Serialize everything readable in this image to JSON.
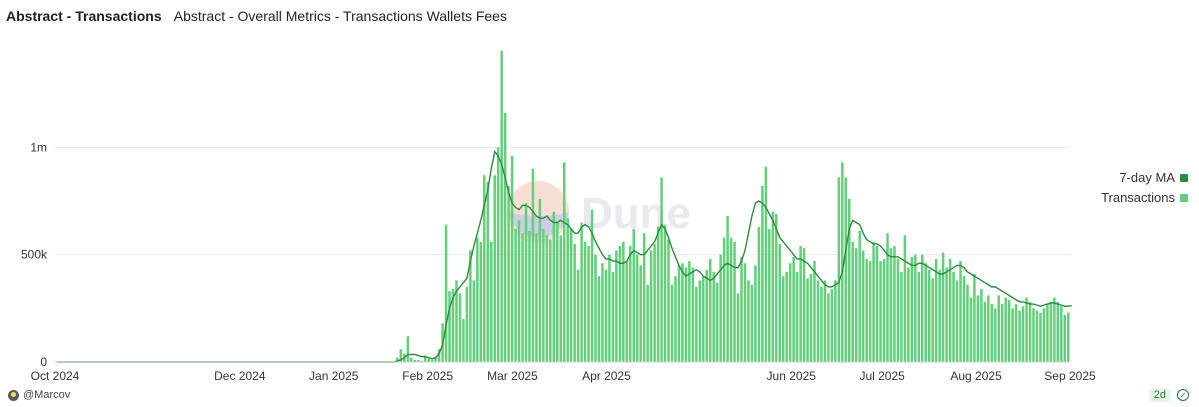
{
  "header": {
    "title": "Abstract - Transactions",
    "subtitle": "Abstract - Overall Metrics - Transactions Wallets Fees"
  },
  "watermark": "Dune",
  "footer": {
    "author": "@Marcov",
    "refresh_badge": "2d"
  },
  "colors": {
    "bars": "#62d07b",
    "ma_line": "#2e8b3f",
    "grid": "#e9e9e9"
  },
  "chart_data": {
    "type": "bar",
    "x_axis": {
      "ticks": [
        "Oct 2024",
        "Dec 2024",
        "Jan 2025",
        "Feb 2025",
        "Mar 2025",
        "Apr 2025",
        "Jun 2025",
        "Jul 2025",
        "Aug 2025",
        "Sep 2025"
      ]
    },
    "y_axis": {
      "ticks": [
        "0",
        "500k",
        "1m"
      ],
      "ylim": [
        0,
        1500000
      ]
    },
    "grid": true,
    "legend_position": "right",
    "series": [
      {
        "name": "7-day MA",
        "type": "line",
        "color": "#2e8b3f",
        "values": [
          0,
          0,
          0,
          0,
          0,
          0,
          0,
          0,
          0,
          0,
          0,
          0,
          0,
          0,
          0,
          0,
          0,
          0,
          0,
          0,
          0,
          0,
          0,
          0,
          0,
          0,
          0,
          0,
          0,
          0,
          0,
          0,
          0,
          0,
          0,
          0,
          0,
          0,
          0,
          0,
          0,
          0,
          0,
          0,
          0,
          0,
          0,
          0,
          0,
          0,
          0,
          0,
          0,
          0,
          0,
          0,
          0,
          0,
          0,
          0,
          0,
          0,
          0,
          0,
          0,
          0,
          0,
          0,
          0,
          0,
          0,
          0,
          0,
          0,
          0,
          0,
          0,
          0,
          0,
          0,
          0,
          0,
          0,
          0,
          0,
          0,
          0,
          0,
          0,
          0,
          0,
          0,
          0,
          0,
          0,
          0,
          0,
          0,
          5000,
          10000,
          20000,
          35000,
          35000,
          35000,
          30000,
          25000,
          25000,
          20000,
          15000,
          20000,
          40000,
          80000,
          170000,
          250000,
          300000,
          330000,
          350000,
          370000,
          390000,
          470000,
          540000,
          600000,
          660000,
          730000,
          800000,
          900000,
          980000,
          960000,
          920000,
          860000,
          790000,
          740000,
          720000,
          710000,
          730000,
          730000,
          720000,
          700000,
          680000,
          670000,
          670000,
          680000,
          660000,
          650000,
          650000,
          660000,
          650000,
          640000,
          620000,
          600000,
          600000,
          630000,
          640000,
          630000,
          600000,
          560000,
          530000,
          500000,
          480000,
          480000,
          470000,
          470000,
          460000,
          460000,
          470000,
          500000,
          520000,
          510000,
          500000,
          500000,
          520000,
          540000,
          560000,
          600000,
          640000,
          620000,
          580000,
          530000,
          490000,
          450000,
          420000,
          400000,
          410000,
          420000,
          430000,
          420000,
          400000,
          390000,
          380000,
          390000,
          410000,
          430000,
          450000,
          460000,
          450000,
          440000,
          440000,
          470000,
          520000,
          600000,
          680000,
          740000,
          750000,
          740000,
          720000,
          690000,
          660000,
          620000,
          580000,
          560000,
          540000,
          520000,
          500000,
          480000,
          480000,
          470000,
          460000,
          440000,
          420000,
          400000,
          380000,
          360000,
          350000,
          350000,
          360000,
          370000,
          420000,
          520000,
          620000,
          660000,
          650000,
          640000,
          600000,
          570000,
          560000,
          550000,
          550000,
          540000,
          520000,
          500000,
          490000,
          490000,
          490000,
          480000,
          470000,
          460000,
          450000,
          450000,
          460000,
          460000,
          450000,
          440000,
          430000,
          420000,
          410000,
          410000,
          420000,
          430000,
          440000,
          450000,
          450000,
          440000,
          420000,
          410000,
          400000,
          390000,
          380000,
          370000,
          360000,
          350000,
          350000,
          340000,
          330000,
          320000,
          310000,
          300000,
          290000,
          280000,
          280000,
          275000,
          270000,
          270000,
          265000,
          260000,
          265000,
          270000,
          275000,
          275000,
          270000,
          265000,
          260000,
          260000,
          262000
        ]
      },
      {
        "name": "Transactions",
        "type": "bar",
        "color": "#62d07b",
        "values": [
          0,
          0,
          0,
          0,
          0,
          0,
          0,
          0,
          0,
          0,
          0,
          0,
          0,
          0,
          0,
          0,
          0,
          0,
          0,
          0,
          0,
          0,
          0,
          0,
          0,
          0,
          0,
          0,
          0,
          0,
          0,
          0,
          0,
          0,
          0,
          0,
          0,
          0,
          0,
          0,
          0,
          0,
          0,
          0,
          0,
          0,
          0,
          0,
          0,
          0,
          0,
          0,
          0,
          0,
          0,
          0,
          0,
          0,
          0,
          0,
          0,
          0,
          0,
          0,
          0,
          0,
          0,
          0,
          0,
          0,
          0,
          0,
          0,
          0,
          0,
          0,
          0,
          0,
          0,
          0,
          0,
          0,
          0,
          0,
          0,
          0,
          0,
          0,
          0,
          0,
          0,
          0,
          0,
          0,
          0,
          0,
          0,
          0,
          20000,
          60000,
          40000,
          120000,
          20000,
          10000,
          10000,
          5000,
          30000,
          15000,
          10000,
          20000,
          60000,
          180000,
          640000,
          330000,
          340000,
          380000,
          320000,
          200000,
          350000,
          520000,
          380000,
          580000,
          560000,
          870000,
          840000,
          560000,
          870000,
          1000000,
          1450000,
          1160000,
          820000,
          960000,
          620000,
          660000,
          600000,
          740000,
          610000,
          900000,
          600000,
          760000,
          620000,
          590000,
          570000,
          700000,
          650000,
          590000,
          930000,
          670000,
          620000,
          550000,
          430000,
          650000,
          560000,
          540000,
          710000,
          500000,
          400000,
          460000,
          430000,
          500000,
          420000,
          520000,
          540000,
          560000,
          470000,
          540000,
          620000,
          500000,
          450000,
          600000,
          360000,
          520000,
          550000,
          630000,
          860000,
          640000,
          570000,
          360000,
          400000,
          450000,
          460000,
          440000,
          470000,
          440000,
          350000,
          380000,
          400000,
          430000,
          480000,
          420000,
          370000,
          500000,
          580000,
          680000,
          580000,
          560000,
          320000,
          490000,
          460000,
          380000,
          360000,
          450000,
          630000,
          820000,
          910000,
          620000,
          700000,
          690000,
          550000,
          400000,
          420000,
          460000,
          490000,
          420000,
          540000,
          530000,
          390000,
          410000,
          470000,
          380000,
          350000,
          380000,
          320000,
          340000,
          380000,
          860000,
          930000,
          860000,
          760000,
          560000,
          530000,
          610000,
          520000,
          480000,
          470000,
          560000,
          540000,
          470000,
          480000,
          600000,
          530000,
          540000,
          480000,
          420000,
          590000,
          440000,
          490000,
          500000,
          420000,
          500000,
          460000,
          430000,
          390000,
          480000,
          430000,
          510000,
          440000,
          480000,
          420000,
          380000,
          470000,
          400000,
          360000,
          300000,
          410000,
          310000,
          340000,
          280000,
          310000,
          270000,
          250000,
          310000,
          270000,
          300000,
          290000,
          250000,
          270000,
          240000,
          260000,
          300000,
          280000,
          250000,
          240000,
          230000,
          250000,
          270000,
          280000,
          300000,
          280000,
          260000,
          220000,
          230000
        ]
      }
    ]
  }
}
